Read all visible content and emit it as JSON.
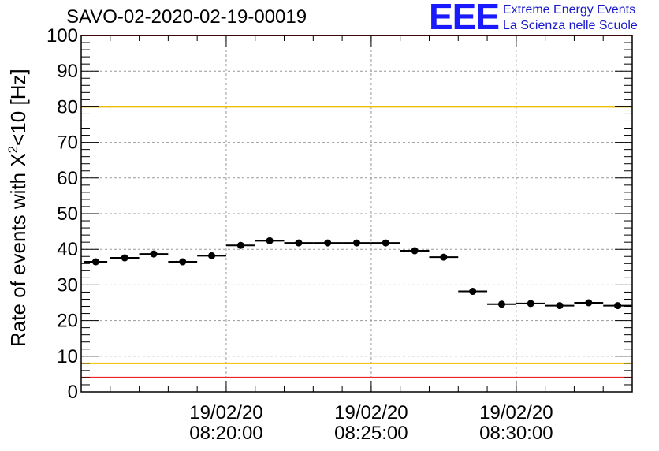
{
  "chart_data": {
    "type": "scatter",
    "title": "SAVO-02-2020-02-19-00019",
    "ylabel_prefix": "Rate of events with X",
    "ylabel_sup": "2",
    "ylabel_suffix": "<10 [Hz]",
    "xlabel": "",
    "ylim": [
      0,
      100
    ],
    "yticks": [
      0,
      10,
      20,
      30,
      40,
      50,
      60,
      70,
      80,
      90,
      100
    ],
    "xticks": [
      {
        "x": 4.5,
        "date": "19/02/20",
        "time": "08:20:00"
      },
      {
        "x": 9.5,
        "date": "19/02/20",
        "time": "08:25:00"
      },
      {
        "x": 14.5,
        "date": "19/02/20",
        "time": "08:30:00"
      }
    ],
    "xlim": [
      0,
      19
    ],
    "grid": true,
    "thresholds": [
      {
        "value": 100,
        "color": "#ee2222"
      },
      {
        "value": 80,
        "color": "#f0c000"
      },
      {
        "value": 8,
        "color": "#f0c000"
      },
      {
        "value": 4,
        "color": "#ee2222"
      }
    ],
    "points": [
      {
        "x": 0.0,
        "xerr": 0.4,
        "y": 36.5
      },
      {
        "x": 1.0,
        "xerr": 0.5,
        "y": 37.6
      },
      {
        "x": 2.0,
        "xerr": 0.5,
        "y": 38.7
      },
      {
        "x": 3.0,
        "xerr": 0.5,
        "y": 36.5
      },
      {
        "x": 4.0,
        "xerr": 0.5,
        "y": 38.2
      },
      {
        "x": 5.0,
        "xerr": 0.5,
        "y": 41.1
      },
      {
        "x": 6.0,
        "xerr": 0.5,
        "y": 42.4
      },
      {
        "x": 7.0,
        "xerr": 0.5,
        "y": 41.8
      },
      {
        "x": 8.0,
        "xerr": 0.5,
        "y": 41.8
      },
      {
        "x": 9.0,
        "xerr": 0.5,
        "y": 41.8
      },
      {
        "x": 10.0,
        "xerr": 0.5,
        "y": 41.8
      },
      {
        "x": 11.0,
        "xerr": 0.5,
        "y": 39.6
      },
      {
        "x": 12.0,
        "xerr": 0.5,
        "y": 37.8
      },
      {
        "x": 13.0,
        "xerr": 0.5,
        "y": 28.2
      },
      {
        "x": 14.0,
        "xerr": 0.5,
        "y": 24.6
      },
      {
        "x": 15.0,
        "xerr": 0.5,
        "y": 24.8
      },
      {
        "x": 16.0,
        "xerr": 0.5,
        "y": 24.2
      },
      {
        "x": 17.0,
        "xerr": 0.5,
        "y": 25.0
      },
      {
        "x": 18.0,
        "xerr": 0.5,
        "y": 24.2
      }
    ],
    "marker_color": "#000000"
  },
  "logo": {
    "mark": "EEE",
    "line1": "Extreme Energy Events",
    "line2": "La Scienza nelle Scuole",
    "color": "#1a1aff"
  }
}
